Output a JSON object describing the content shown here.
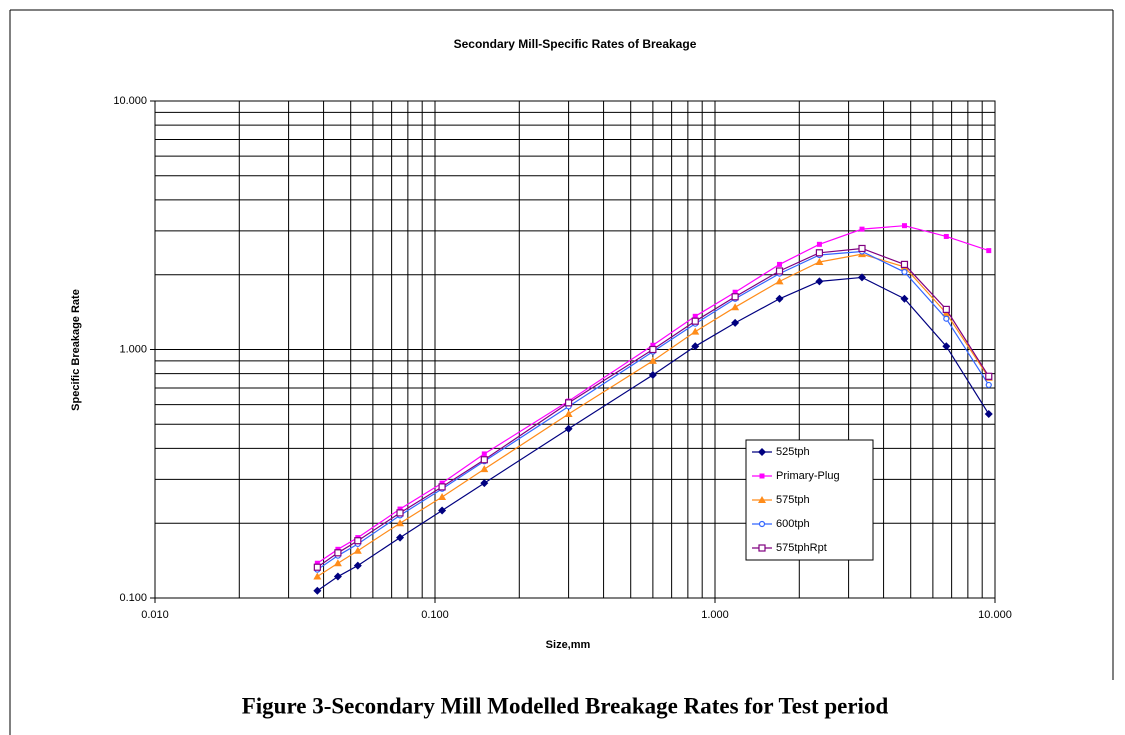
{
  "chart_data": {
    "type": "line",
    "title": "Secondary Mill-Specific Rates of Breakage",
    "xlabel": "Size,mm",
    "ylabel": "Specific Breakage Rate",
    "caption": "Figure 3-Secondary Mill Modelled Breakage Rates for Test period",
    "xscale": "log",
    "yscale": "log",
    "grid": true,
    "xlim": [
      0.01,
      10
    ],
    "ylim": [
      0.1,
      10
    ],
    "xticks": [
      {
        "value": 0.01,
        "label": "0.010"
      },
      {
        "value": 0.1,
        "label": "0.100"
      },
      {
        "value": 1,
        "label": "1.000"
      },
      {
        "value": 10,
        "label": "10.000"
      }
    ],
    "yticks": [
      {
        "value": 0.1,
        "label": "0.100"
      },
      {
        "value": 1,
        "label": "1.000"
      },
      {
        "value": 10,
        "label": "10.000"
      }
    ],
    "xminorticks": [
      0.02,
      0.03,
      0.04,
      0.05,
      0.06,
      0.07,
      0.08,
      0.09,
      0.2,
      0.3,
      0.4,
      0.5,
      0.6,
      0.7,
      0.8,
      0.9,
      2,
      3,
      4,
      5,
      6,
      7,
      8,
      9
    ],
    "yminorticks": [
      0.2,
      0.3,
      0.4,
      0.5,
      0.6,
      0.7,
      0.8,
      0.9,
      2,
      3,
      4,
      5,
      6,
      7,
      8,
      9
    ],
    "x": [
      0.038,
      0.045,
      0.053,
      0.075,
      0.106,
      0.15,
      0.3,
      0.6,
      0.85,
      1.18,
      1.7,
      2.36,
      3.35,
      4.75,
      6.7,
      9.5
    ],
    "series": [
      {
        "name": "525tph",
        "color": "#000080",
        "marker": "diamond",
        "values": [
          0.107,
          0.122,
          0.135,
          0.175,
          0.225,
          0.29,
          0.48,
          0.79,
          1.03,
          1.28,
          1.6,
          1.88,
          1.95,
          1.6,
          1.03,
          0.55
        ]
      },
      {
        "name": "Primary-Plug",
        "color": "#ff00ff",
        "marker": "square",
        "values": [
          0.138,
          0.157,
          0.175,
          0.228,
          0.29,
          0.38,
          0.62,
          1.04,
          1.36,
          1.7,
          2.2,
          2.65,
          3.05,
          3.15,
          2.85,
          2.5
        ]
      },
      {
        "name": "575tph",
        "color": "#ff8c1a",
        "marker": "triangle",
        "values": [
          0.122,
          0.138,
          0.155,
          0.2,
          0.255,
          0.33,
          0.55,
          0.9,
          1.18,
          1.48,
          1.88,
          2.25,
          2.42,
          2.15,
          1.4,
          0.77
        ]
      },
      {
        "name": "600tph",
        "color": "#3366ff",
        "marker": "open-circle",
        "values": [
          0.13,
          0.148,
          0.165,
          0.215,
          0.275,
          0.355,
          0.59,
          0.98,
          1.27,
          1.6,
          2.02,
          2.4,
          2.48,
          2.05,
          1.33,
          0.72
        ]
      },
      {
        "name": "575tphRpt",
        "color": "#800080",
        "marker": "open-square",
        "values": [
          0.133,
          0.152,
          0.17,
          0.22,
          0.28,
          0.36,
          0.61,
          1.0,
          1.3,
          1.63,
          2.07,
          2.45,
          2.55,
          2.2,
          1.45,
          0.78
        ]
      }
    ]
  }
}
